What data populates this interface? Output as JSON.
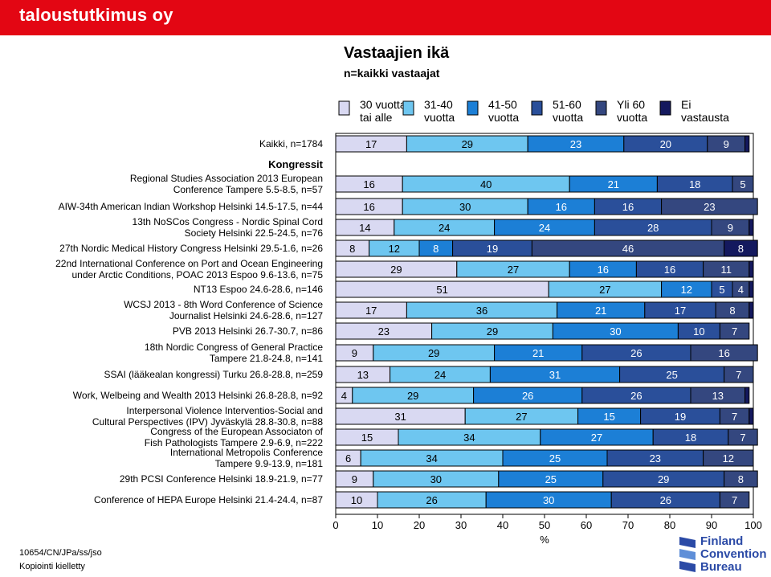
{
  "brand": "taloustutkimus oy",
  "footer": {
    "code": "10654/CN/JPa/ss/jso",
    "note": "Kopiointi kielletty"
  },
  "logo": {
    "lines": [
      "Finland",
      "Convention",
      "Bureau"
    ]
  },
  "colors": {
    "header_bar": "#e30613",
    "series": [
      "#d9d9f2",
      "#6ec6f0",
      "#1c7fd6",
      "#2a4f9a",
      "#34477f",
      "#14195e",
      "#ffffff"
    ]
  },
  "chart_data": {
    "type": "bar",
    "orientation": "horizontal-stacked",
    "title": "Vastaajien ikä",
    "subtitle": "n=kaikki vastaajat",
    "xlabel": "%",
    "xlim": [
      0,
      100
    ],
    "x_ticks": [
      "0",
      "10",
      "20",
      "30",
      "40",
      "50",
      "60",
      "70",
      "80",
      "90",
      "100"
    ],
    "legend": [
      "30 vuotta tai alle",
      "31-40 vuotta",
      "41-50 vuotta",
      "51-60 vuotta",
      "Yli 60 vuotta",
      "Ei vastausta"
    ],
    "section_label": "Kongressit",
    "rows": [
      {
        "label": [
          "Kaikki, n=1784"
        ],
        "values": [
          17,
          29,
          23,
          20,
          9,
          1
        ]
      },
      {
        "label": [
          "Regional Studies Association 2013 European",
          "Conference Tampere 5.5-8.5, n=57"
        ],
        "values": [
          16,
          40,
          21,
          18,
          5,
          0
        ]
      },
      {
        "label": [
          "AIW-34th American Indian Workshop Helsinki 14.5-17.5, n=44"
        ],
        "values": [
          16,
          30,
          16,
          16,
          23,
          0
        ]
      },
      {
        "label": [
          "13th NoSCos Congress - Nordic Spinal Cord",
          "Society Helsinki 22.5-24.5, n=76"
        ],
        "values": [
          14,
          24,
          24,
          28,
          9,
          1
        ]
      },
      {
        "label": [
          "27th Nordic Medical History Congress Helsinki 29.5-1.6, n=26"
        ],
        "values": [
          8,
          12,
          8,
          19,
          46,
          8
        ]
      },
      {
        "label": [
          "22nd International Conference on Port and Ocean Engineering",
          "under Arctic Conditions, POAC 2013 Espoo 9.6-13.6, n=75"
        ],
        "values": [
          29,
          27,
          16,
          16,
          11,
          1
        ]
      },
      {
        "label": [
          "NT13 Espoo 24.6-28.6, n=146"
        ],
        "values": [
          51,
          27,
          12,
          5,
          4,
          1
        ]
      },
      {
        "label": [
          "WCSJ 2013 - 8th Word Conference of Science",
          "Journalist Helsinki 24.6-28.6, n=127"
        ],
        "values": [
          17,
          36,
          21,
          17,
          8,
          1
        ]
      },
      {
        "label": [
          "PVB 2013 Helsinki 26.7-30.7, n=86"
        ],
        "values": [
          23,
          29,
          30,
          10,
          7,
          0
        ]
      },
      {
        "label": [
          "18th Nordic Congress of General Practice",
          "Tampere 21.8-24.8, n=141"
        ],
        "values": [
          9,
          29,
          21,
          26,
          16,
          0
        ]
      },
      {
        "label": [
          "SSAI (lääkealan kongressi) Turku 26.8-28.8, n=259"
        ],
        "values": [
          13,
          24,
          31,
          25,
          7,
          0
        ]
      },
      {
        "label": [
          "Work, Welbeing and Wealth 2013 Helsinki 26.8-28.8, n=92"
        ],
        "values": [
          4,
          29,
          26,
          26,
          13,
          1
        ]
      },
      {
        "label": [
          "Interpersonal Violence Interventios-Social and",
          "Cultural Perspectives (IPV) Jyväskylä 28.8-30.8, n=88"
        ],
        "values": [
          31,
          27,
          15,
          19,
          7,
          1
        ]
      },
      {
        "label": [
          "Congress of the European Associaton of",
          "Fish Pathologists Tampere 2.9-6.9, n=222"
        ],
        "values": [
          15,
          34,
          27,
          18,
          7,
          0
        ]
      },
      {
        "label": [
          "International Metropolis Conference",
          "Tampere 9.9-13.9, n=181"
        ],
        "values": [
          6,
          34,
          25,
          23,
          12,
          0
        ]
      },
      {
        "label": [
          "29th PCSI Conference Helsinki 18.9-21.9, n=77"
        ],
        "values": [
          9,
          30,
          25,
          29,
          8,
          0
        ]
      },
      {
        "label": [
          "Conference of HEPA Europe Helsinki 21.4-24.4, n=87"
        ],
        "values": [
          10,
          26,
          30,
          26,
          7,
          0
        ]
      }
    ]
  }
}
